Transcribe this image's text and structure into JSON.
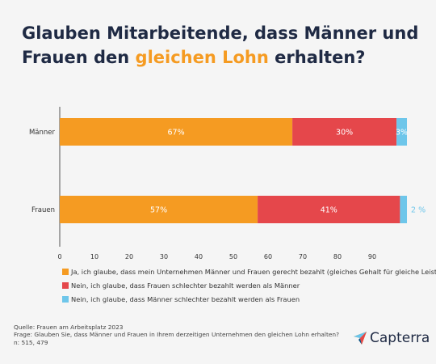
{
  "title": {
    "part1": "Glauben Mitarbeitende, dass Männer und Frauen den ",
    "highlight": "gleichen Lohn",
    "part2": " erhalten?"
  },
  "colors": {
    "title": "#1f2a44",
    "highlight": "#f59b22",
    "series": [
      "#f59b22",
      "#e5474b",
      "#6ec6ea"
    ]
  },
  "chart_data": {
    "type": "bar",
    "orientation": "horizontal",
    "stacked": true,
    "categories": [
      "Männer",
      "Frauen"
    ],
    "series": [
      {
        "name": "Ja, ich glaube, dass mein Unternehmen Männer und Frauen gerecht bezahlt (gleiches Gehalt für gleiche Leistung)",
        "values": [
          67,
          57
        ],
        "labels": [
          "67%",
          "57%"
        ]
      },
      {
        "name": "Nein, ich glaube, dass Frauen schlechter bezahlt werden als Männer",
        "values": [
          30,
          41
        ],
        "labels": [
          "30%",
          "41%"
        ]
      },
      {
        "name": "Nein, ich glaube, dass Männer schlechter bezahlt werden als Frauen",
        "values": [
          3,
          2
        ],
        "labels": [
          "3%",
          "2 %"
        ]
      }
    ],
    "xticks": [
      0,
      10,
      20,
      30,
      40,
      50,
      60,
      70,
      80,
      90
    ],
    "xlim": [
      0,
      100
    ],
    "grid": false,
    "legend_position": "bottom"
  },
  "footer": {
    "source": "Quelle: Frauen am Arbeitsplatz 2023",
    "question": "Frage: Glauben Sie, dass Männer und Frauen in Ihrem derzeitigen Unternehmen den gleichen Lohn erhalten?",
    "n": "n: 515, 479"
  },
  "logo": {
    "text": "Capterra",
    "icon": "capterra-arrow-icon"
  }
}
